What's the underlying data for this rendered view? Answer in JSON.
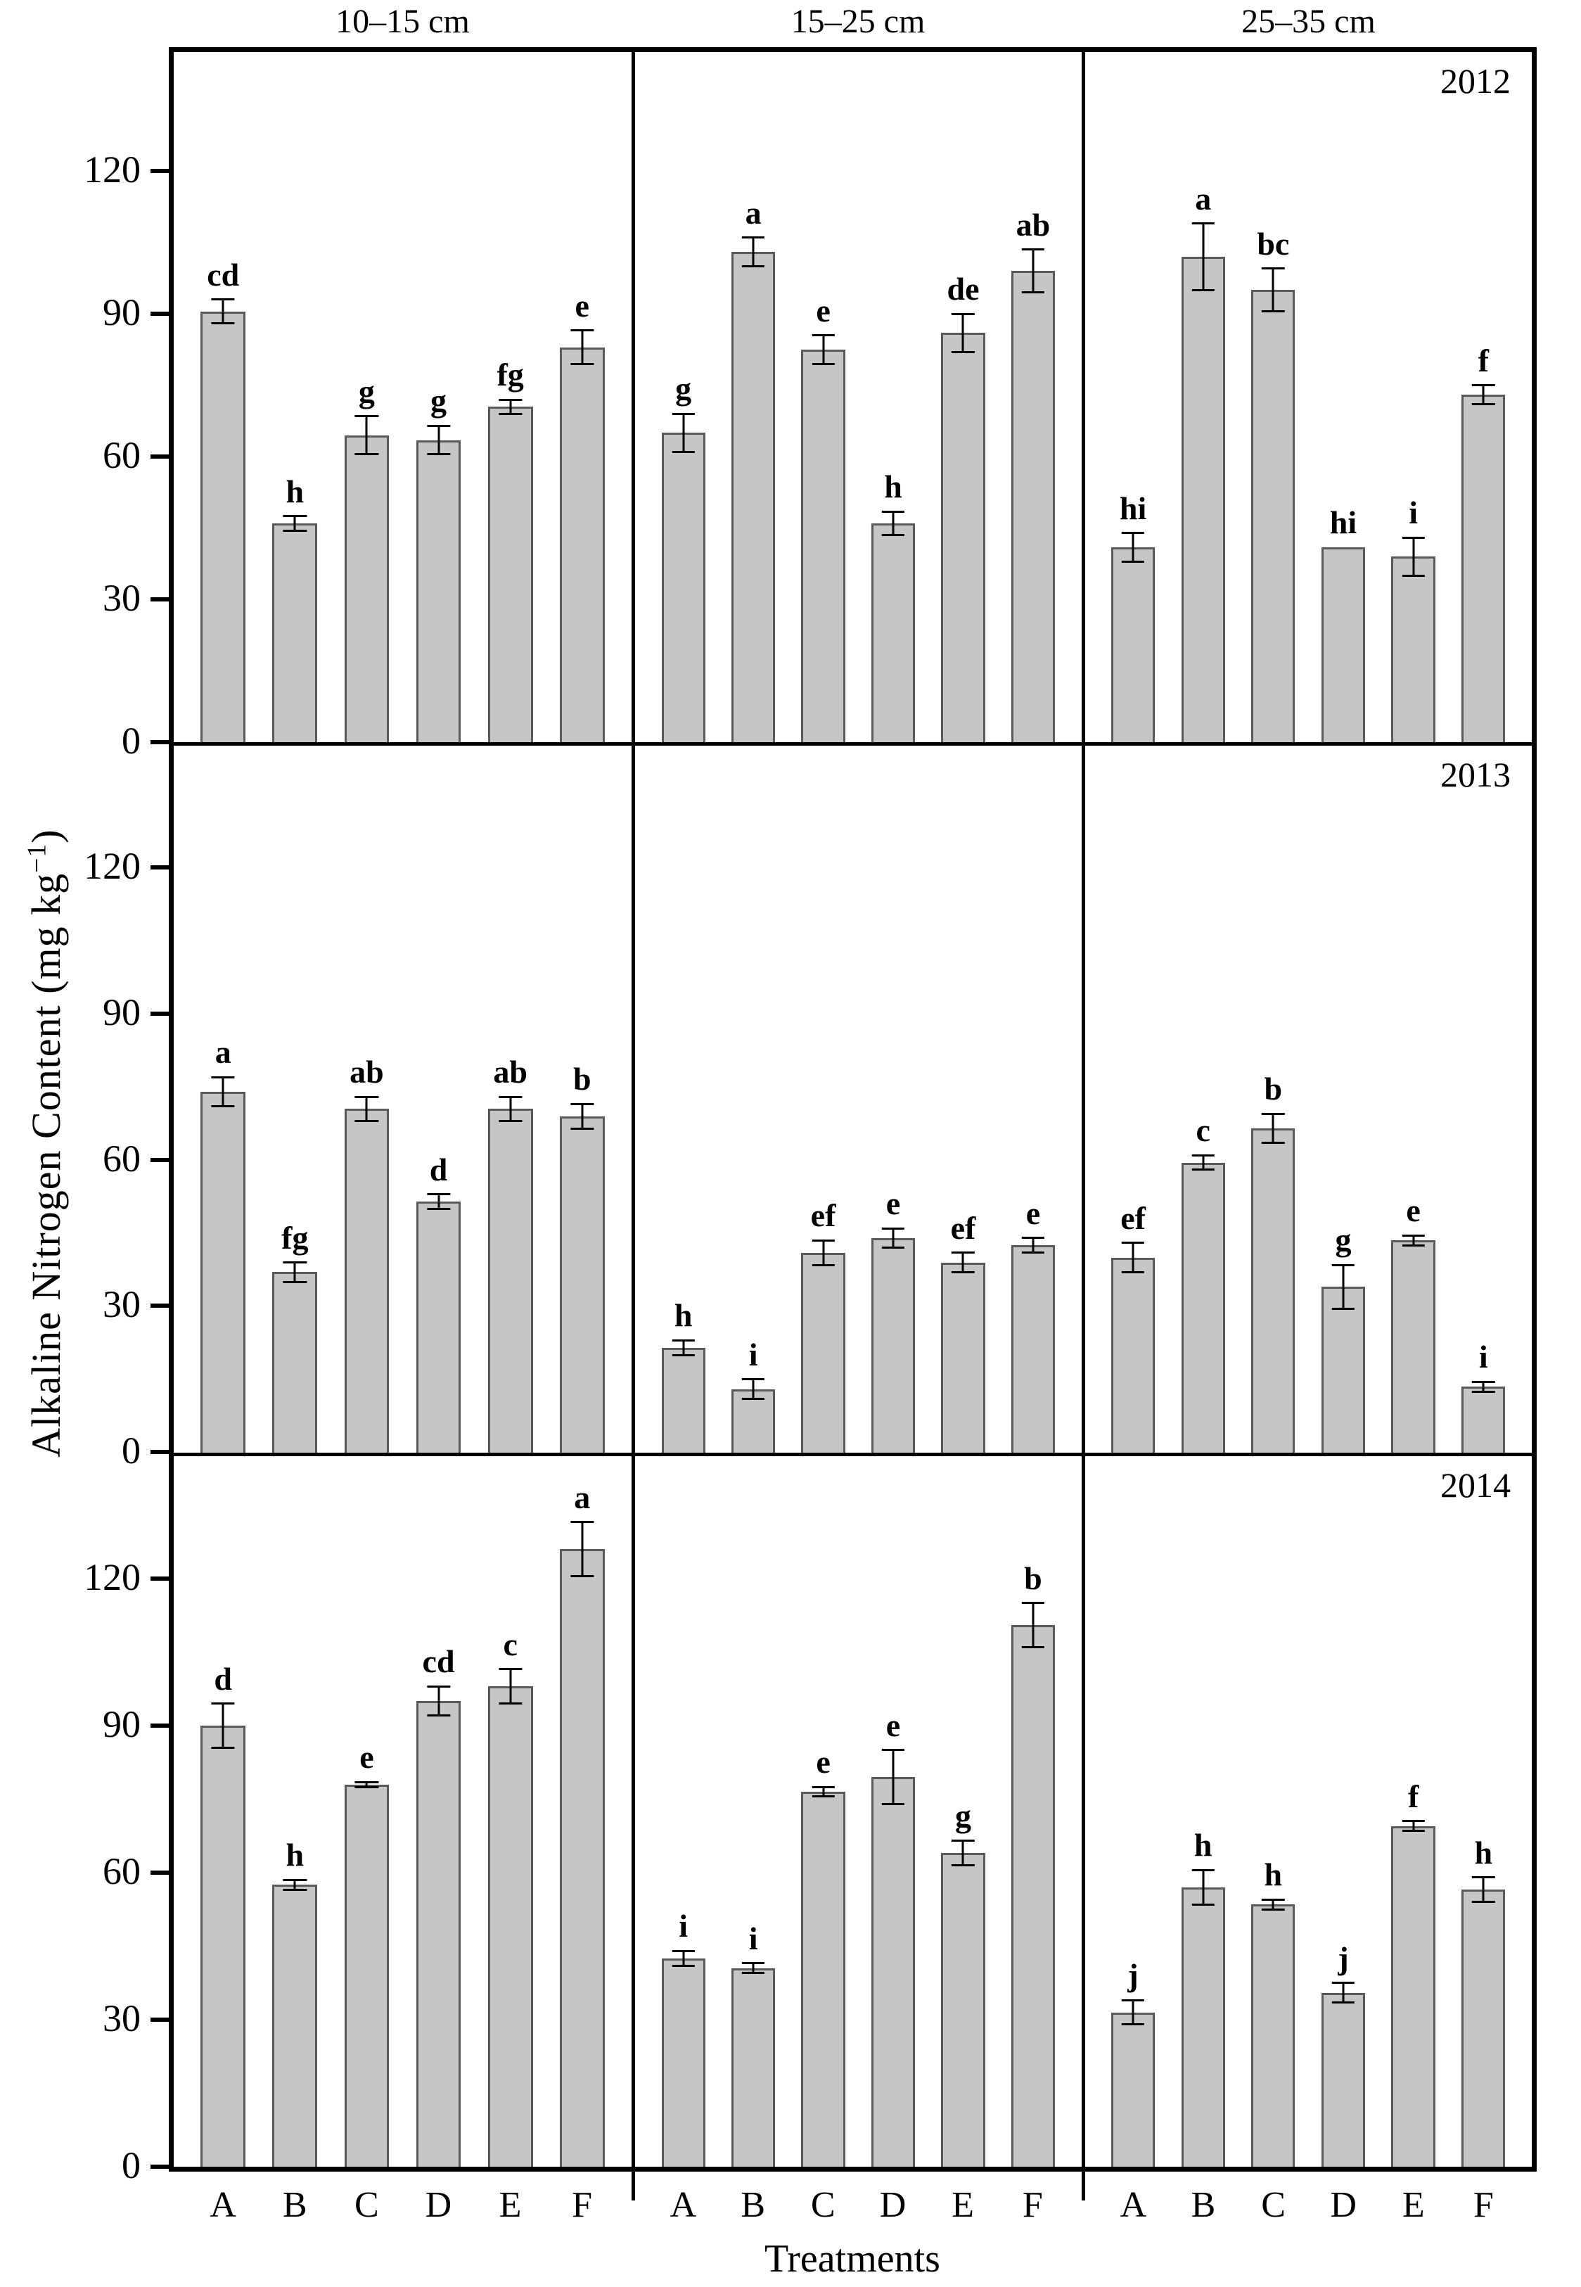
{
  "figure": {
    "y_axis_label_main": "Alkaline Nitrogen Content (mg kg",
    "y_axis_label_sup": "−1",
    "y_axis_label_close": ")"
  },
  "colors": {
    "bar_fill": "#c6c6c6",
    "bar_border": "#5a5a5a",
    "frame": "#000000",
    "error_bar": "#000000",
    "background": "#ffffff"
  },
  "chart_data": {
    "type": "bar",
    "title": "",
    "ylabel": "Alkaline Nitrogen Content (mg kg−1)",
    "xlabel": "Treatments",
    "ylim": [
      0,
      145
    ],
    "yticks": [
      0,
      30,
      60,
      90,
      120
    ],
    "grid": "off",
    "legend": "none",
    "categories": [
      "A",
      "B",
      "C",
      "D",
      "E",
      "F"
    ],
    "col_headers": [
      "10–15 cm",
      "15–25 cm",
      "25–35 cm"
    ],
    "row_labels": [
      "2012",
      "2013",
      "2014"
    ],
    "panels": [
      {
        "year": "2012",
        "depth": "10–15 cm",
        "values": [
          90.5,
          46,
          64.5,
          63.5,
          70.5,
          83
        ],
        "errors": [
          2.5,
          1.5,
          4,
          3,
          1.5,
          3.5
        ],
        "sig_letters": [
          "cd",
          "h",
          "g",
          "g",
          "fg",
          "e"
        ]
      },
      {
        "year": "2012",
        "depth": "15–25 cm",
        "values": [
          65,
          103,
          82.5,
          46,
          86,
          99
        ],
        "errors": [
          4,
          3,
          3,
          2.5,
          4,
          4.5
        ],
        "sig_letters": [
          "g",
          "a",
          "e",
          "h",
          "de",
          "ab"
        ]
      },
      {
        "year": "2012",
        "depth": "25–35 cm",
        "values": [
          41,
          102,
          95,
          41,
          39,
          73
        ],
        "errors": [
          3,
          7,
          4.5,
          0,
          4,
          2
        ],
        "sig_letters": [
          "hi",
          "a",
          "bc",
          "hi",
          "i",
          "f"
        ]
      },
      {
        "year": "2013",
        "depth": "10–15 cm",
        "values": [
          74,
          37,
          70.5,
          51.5,
          70.5,
          69
        ],
        "errors": [
          3,
          2,
          2.5,
          1.5,
          2.5,
          2.5
        ],
        "sig_letters": [
          "a",
          "fg",
          "ab",
          "d",
          "ab",
          "b"
        ]
      },
      {
        "year": "2013",
        "depth": "15–25 cm",
        "values": [
          21.5,
          13,
          41,
          44,
          39,
          42.5
        ],
        "errors": [
          1.5,
          2,
          2.5,
          2,
          2,
          1.5
        ],
        "sig_letters": [
          "h",
          "i",
          "ef",
          "e",
          "ef",
          "e"
        ]
      },
      {
        "year": "2013",
        "depth": "25–35 cm",
        "values": [
          40,
          59.5,
          66.5,
          34,
          43.5,
          13.5
        ],
        "errors": [
          3,
          1.5,
          3,
          4.5,
          1,
          1
        ],
        "sig_letters": [
          "ef",
          "c",
          "b",
          "g",
          "e",
          "i"
        ]
      },
      {
        "year": "2014",
        "depth": "10–15 cm",
        "values": [
          90,
          57.5,
          78,
          95,
          98,
          126
        ],
        "errors": [
          4.5,
          1,
          0.5,
          3,
          3.5,
          5.5
        ],
        "sig_letters": [
          "d",
          "h",
          "e",
          "cd",
          "c",
          "a"
        ]
      },
      {
        "year": "2014",
        "depth": "15–25 cm",
        "values": [
          42.5,
          40.5,
          76.5,
          79.5,
          64,
          110.5
        ],
        "errors": [
          1.5,
          1,
          1,
          5.5,
          2.5,
          4.5
        ],
        "sig_letters": [
          "i",
          "i",
          "e",
          "e",
          "g",
          "b"
        ]
      },
      {
        "year": "2014",
        "depth": "25–35 cm",
        "values": [
          31.5,
          57,
          53.5,
          35.5,
          69.5,
          56.5
        ],
        "errors": [
          2.5,
          3.5,
          1,
          2,
          1,
          2.5
        ],
        "sig_letters": [
          "j",
          "h",
          "h",
          "j",
          "f",
          "h"
        ]
      }
    ]
  }
}
